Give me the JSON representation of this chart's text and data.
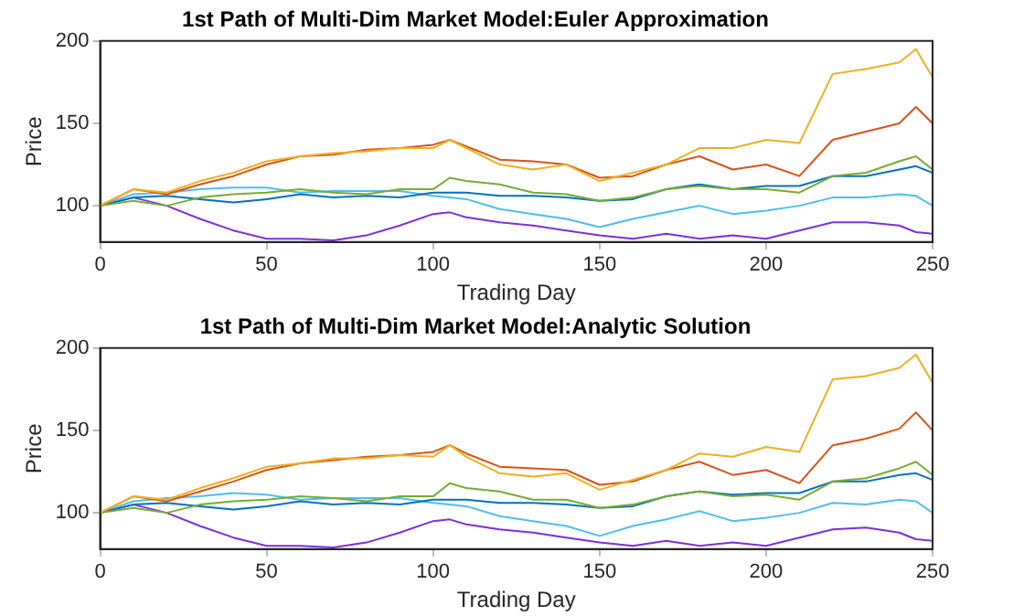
{
  "chart_data": [
    {
      "type": "line",
      "title": "1st Path of Multi-Dim Market Model:Euler Approximation",
      "xlabel": "Trading Day",
      "ylabel": "Price",
      "x": [
        0,
        10,
        20,
        30,
        40,
        50,
        60,
        70,
        80,
        90,
        100,
        105,
        110,
        120,
        130,
        140,
        150,
        160,
        170,
        180,
        190,
        200,
        210,
        220,
        230,
        240,
        245,
        250
      ],
      "xlim": [
        0,
        250
      ],
      "xticks": [
        0,
        50,
        100,
        150,
        200,
        250
      ],
      "ylim": [
        78,
        200
      ],
      "yticks": [
        100,
        150,
        200
      ],
      "grid": false,
      "legend": false,
      "marker": "none",
      "series": [
        {
          "color": "#edb120",
          "values": [
            100,
            110,
            108,
            115,
            120,
            127,
            130,
            132,
            133,
            135,
            135,
            140,
            135,
            125,
            122,
            125,
            115,
            120,
            125,
            135,
            135,
            140,
            138,
            180,
            183,
            187,
            195,
            178
          ]
        },
        {
          "color": "#d95319",
          "values": [
            100,
            110,
            107,
            113,
            118,
            125,
            130,
            131,
            134,
            135,
            137,
            140,
            136,
            128,
            127,
            125,
            117,
            118,
            125,
            130,
            122,
            125,
            118,
            140,
            145,
            150,
            160,
            150
          ]
        },
        {
          "color": "#77ac30",
          "values": [
            100,
            103,
            100,
            105,
            107,
            108,
            110,
            108,
            107,
            110,
            110,
            117,
            115,
            113,
            108,
            107,
            103,
            105,
            110,
            112,
            110,
            110,
            108,
            118,
            120,
            127,
            130,
            122
          ]
        },
        {
          "color": "#0072bd",
          "values": [
            100,
            105,
            106,
            104,
            102,
            104,
            107,
            105,
            106,
            105,
            108,
            108,
            108,
            106,
            106,
            105,
            103,
            104,
            110,
            113,
            110,
            112,
            112,
            118,
            118,
            122,
            124,
            120
          ]
        },
        {
          "color": "#4dbeee",
          "values": [
            100,
            107,
            108,
            110,
            111,
            111,
            108,
            109,
            109,
            109,
            106,
            105,
            104,
            98,
            95,
            92,
            87,
            92,
            96,
            100,
            95,
            97,
            100,
            105,
            105,
            107,
            106,
            100
          ]
        },
        {
          "color": "#7e2fdb",
          "values": [
            100,
            105,
            100,
            92,
            85,
            80,
            80,
            79,
            82,
            88,
            95,
            96,
            93,
            90,
            88,
            85,
            82,
            80,
            83,
            80,
            82,
            80,
            85,
            90,
            90,
            88,
            84,
            83
          ]
        }
      ]
    },
    {
      "type": "line",
      "title": "1st Path of Multi-Dim Market Model:Analytic Solution",
      "xlabel": "Trading Day",
      "ylabel": "Price",
      "x": [
        0,
        10,
        20,
        30,
        40,
        50,
        60,
        70,
        80,
        90,
        100,
        105,
        110,
        120,
        130,
        140,
        150,
        160,
        170,
        180,
        190,
        200,
        210,
        220,
        230,
        240,
        245,
        250
      ],
      "xlim": [
        0,
        250
      ],
      "xticks": [
        0,
        50,
        100,
        150,
        200,
        250
      ],
      "ylim": [
        78,
        200
      ],
      "yticks": [
        100,
        150,
        200
      ],
      "grid": false,
      "legend": false,
      "marker": "none",
      "series": [
        {
          "color": "#edb120",
          "values": [
            100,
            110,
            108,
            115,
            121,
            128,
            130,
            133,
            133,
            135,
            134,
            141,
            134,
            124,
            122,
            124,
            114,
            120,
            126,
            136,
            134,
            140,
            137,
            181,
            183,
            188,
            196,
            179
          ]
        },
        {
          "color": "#d95319",
          "values": [
            100,
            110,
            107,
            113,
            119,
            126,
            130,
            132,
            134,
            135,
            137,
            141,
            136,
            128,
            127,
            126,
            117,
            119,
            126,
            131,
            123,
            126,
            118,
            141,
            145,
            151,
            161,
            150
          ]
        },
        {
          "color": "#77ac30",
          "values": [
            100,
            103,
            100,
            105,
            107,
            108,
            110,
            109,
            107,
            110,
            110,
            118,
            115,
            113,
            108,
            108,
            103,
            105,
            110,
            113,
            110,
            111,
            108,
            119,
            121,
            127,
            131,
            123
          ]
        },
        {
          "color": "#0072bd",
          "values": [
            100,
            105,
            106,
            104,
            102,
            104,
            107,
            105,
            106,
            105,
            108,
            108,
            108,
            106,
            106,
            105,
            103,
            104,
            110,
            113,
            111,
            112,
            112,
            119,
            119,
            123,
            124,
            120
          ]
        },
        {
          "color": "#4dbeee",
          "values": [
            100,
            107,
            109,
            110,
            112,
            111,
            108,
            109,
            109,
            109,
            106,
            105,
            104,
            98,
            95,
            92,
            86,
            92,
            96,
            101,
            95,
            97,
            100,
            106,
            105,
            108,
            107,
            100
          ]
        },
        {
          "color": "#7e2fdb",
          "values": [
            100,
            105,
            100,
            92,
            85,
            80,
            80,
            79,
            82,
            88,
            95,
            96,
            93,
            90,
            88,
            85,
            82,
            80,
            83,
            80,
            82,
            80,
            85,
            90,
            91,
            88,
            84,
            83
          ]
        }
      ]
    }
  ]
}
